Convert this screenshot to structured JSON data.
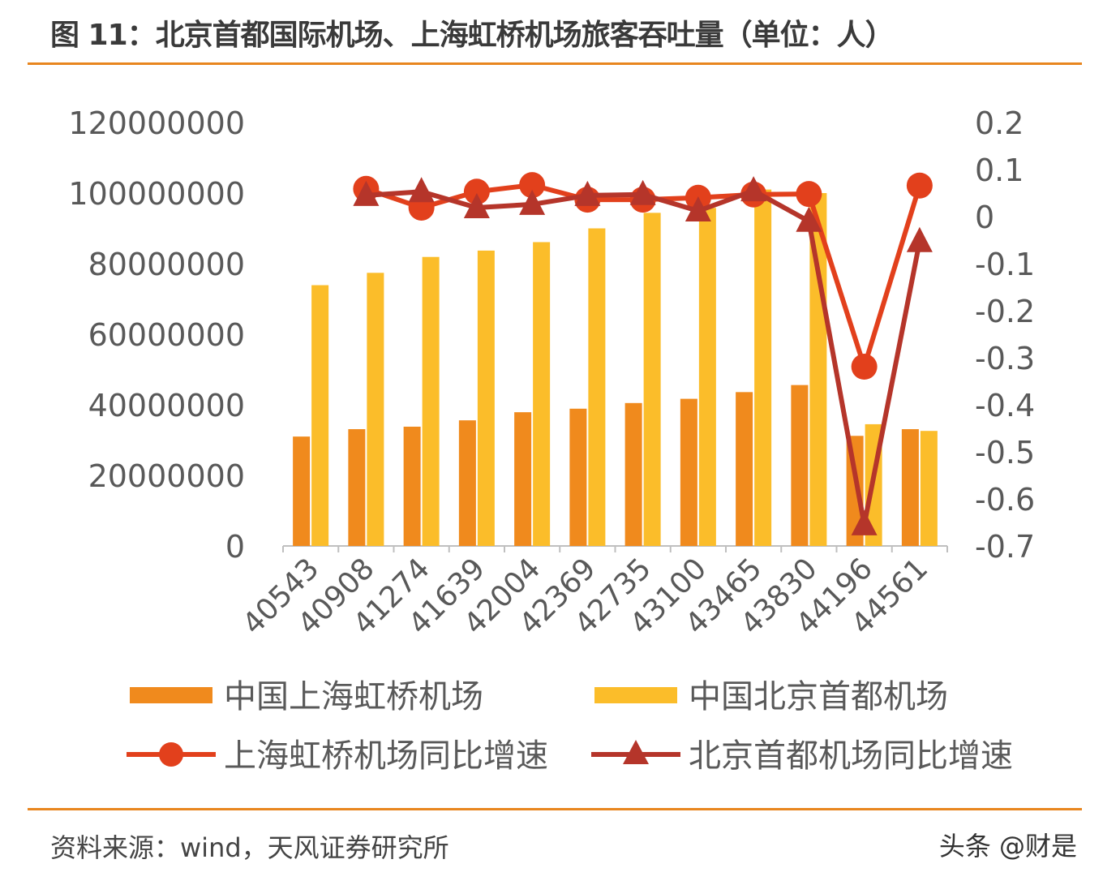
{
  "title": "图 11：北京首都国际机场、上海虹桥机场旅客吞吐量（单位：人）",
  "source": "资料来源：wind，天风证券研究所",
  "watermark": "头条 @财是",
  "colors": {
    "accent_rule": "#e8861f",
    "shanghai_bar": "#f08a1d",
    "beijing_bar": "#fbbd2a",
    "shanghai_line": "#e2401c",
    "beijing_line": "#b5352a"
  },
  "chart_data": {
    "type": "bar+line",
    "categories": [
      "40543",
      "40908",
      "41274",
      "41639",
      "42004",
      "42369",
      "42735",
      "43100",
      "43465",
      "43830",
      "44196",
      "44561"
    ],
    "y_left": {
      "lim": [
        0,
        120000000
      ],
      "ticks": [
        "0",
        "20000000",
        "40000000",
        "60000000",
        "80000000",
        "100000000",
        "120000000"
      ]
    },
    "y_right": {
      "lim": [
        -0.7,
        0.2
      ],
      "ticks": [
        "-0.7",
        "-0.6",
        "-0.5",
        "-0.4",
        "-0.3",
        "-0.2",
        "-0.1",
        "0",
        "0.1",
        "0.2"
      ]
    },
    "grid": false,
    "legend_position": "bottom",
    "series": [
      {
        "name": "中国上海虹桥机场",
        "type": "bar",
        "axis": "left",
        "marker": "rect",
        "values": [
          31000000,
          33100000,
          33800000,
          35600000,
          37900000,
          38900000,
          40500000,
          41700000,
          43600000,
          45600000,
          31200000,
          33100000
        ]
      },
      {
        "name": "中国北京首都机场",
        "type": "bar",
        "axis": "left",
        "marker": "rect",
        "values": [
          73900000,
          77400000,
          81900000,
          83700000,
          86100000,
          90000000,
          94400000,
          95800000,
          101000000,
          100000000,
          34500000,
          32600000
        ]
      },
      {
        "name": "上海虹桥机场同比增速",
        "type": "line",
        "axis": "right",
        "marker": "circle",
        "values": [
          null,
          0.059,
          0.019,
          0.053,
          0.067,
          0.036,
          0.036,
          0.04,
          0.047,
          0.048,
          -0.319,
          0.066
        ]
      },
      {
        "name": "北京首都机场同比增速",
        "type": "line",
        "axis": "right",
        "marker": "triangle",
        "values": [
          null,
          0.045,
          0.053,
          0.019,
          0.026,
          0.045,
          0.047,
          0.012,
          0.055,
          -0.01,
          -0.655,
          -0.053
        ]
      }
    ]
  }
}
